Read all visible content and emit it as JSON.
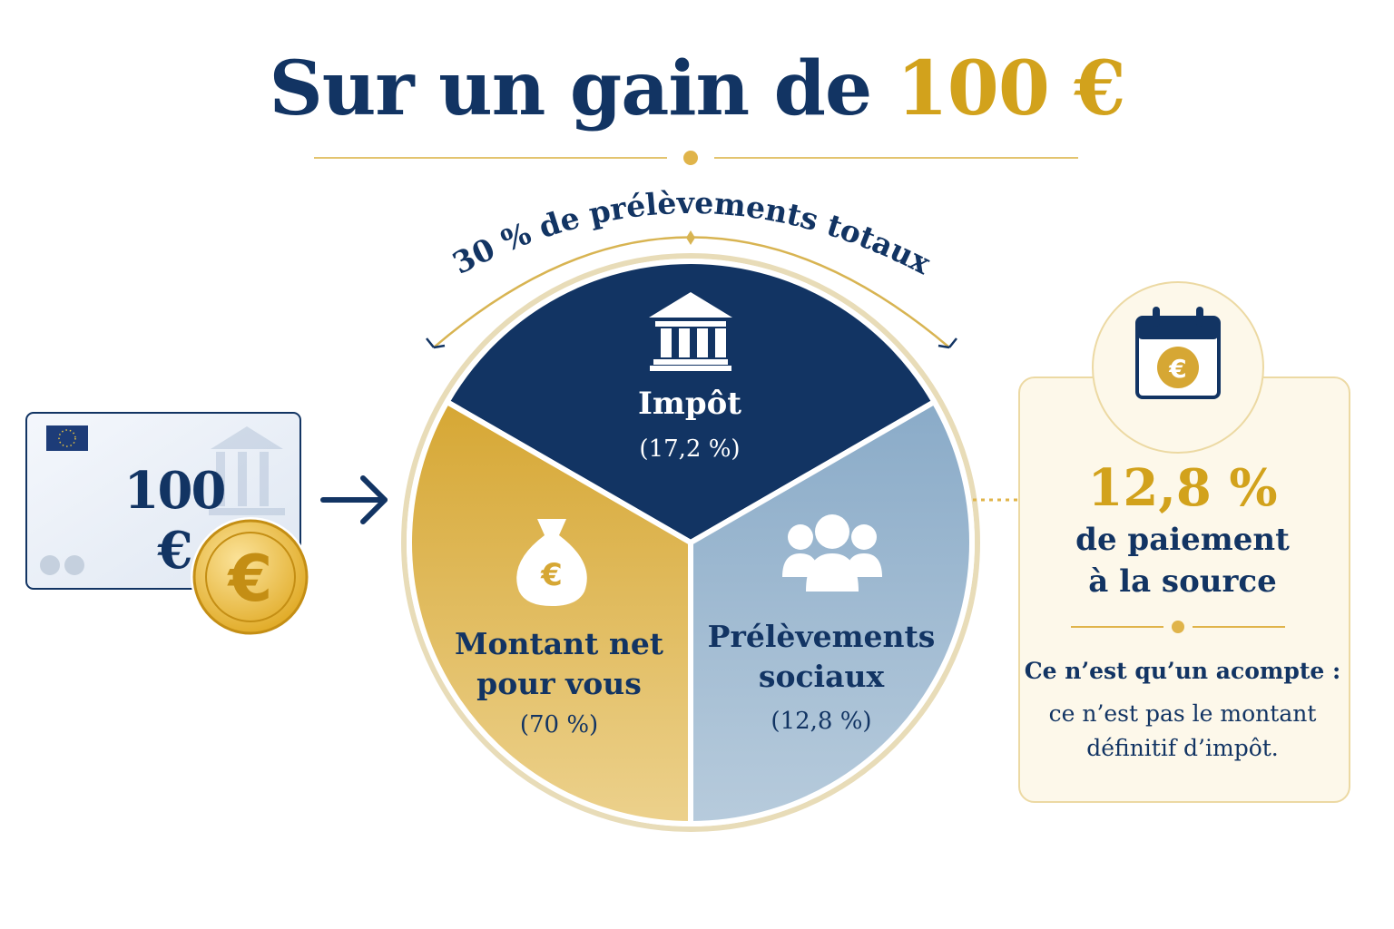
{
  "title": {
    "prefix": "Sur un gain de ",
    "amount": "100 €"
  },
  "banknote": {
    "amount": "100 €"
  },
  "arc_label": "30 % de prélèvements totaux",
  "colors": {
    "navy": "#123463",
    "gold": "#d2a21c",
    "light_blue": "#9ab6cf",
    "cream": "#fdf8ea"
  },
  "chart_data": {
    "type": "pie",
    "slices": [
      {
        "name": "Impôt",
        "label": "(17,2 %)",
        "value": 17.2,
        "color": "#123463",
        "icon": "bank-building-icon"
      },
      {
        "name": "Prélèvements sociaux",
        "label": "(12,8 %)",
        "value": 12.8,
        "color": "#9ab6cf",
        "icon": "people-group-icon"
      },
      {
        "name": "Montant net pour vous",
        "label": "(70 %)",
        "value": 70,
        "color": "#e0b44a",
        "icon": "money-bag-icon"
      }
    ]
  },
  "slices_text": {
    "impot": {
      "name": "Impôt",
      "pct": "(17,2 %)"
    },
    "net": {
      "line1": "Montant net",
      "line2": "pour vous",
      "pct": "(70 %)"
    },
    "social": {
      "line1": "Prélèvements",
      "line2": "sociaux",
      "pct": "(12,8 %)"
    }
  },
  "card": {
    "pct": "12,8 %",
    "sub1": "de paiement",
    "sub2": "à la source",
    "note_title": "Ce n’est qu’un acompte :",
    "note_line1": "ce n’est pas le montant",
    "note_line2": "définitif d’impôt.",
    "icon": "calendar-euro-icon"
  }
}
